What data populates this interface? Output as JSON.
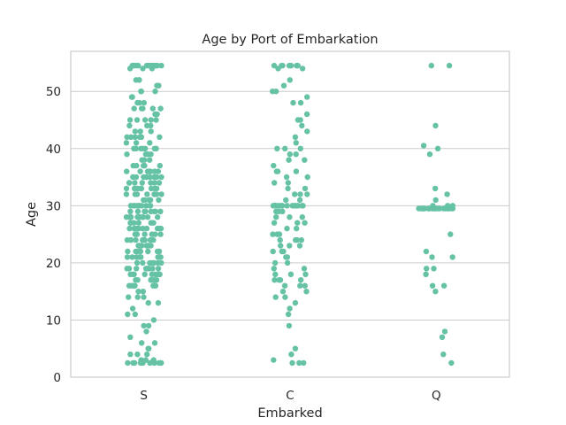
{
  "chart_data": {
    "type": "scatter",
    "title": "Age by Port of Embarkation",
    "xlabel": "Embarked",
    "ylabel": "Age",
    "categories": [
      "S",
      "C",
      "Q"
    ],
    "ylim": [
      0,
      57
    ],
    "yticks": [
      0,
      10,
      20,
      30,
      40,
      50
    ],
    "grid": true,
    "point_color": "#66c2a5",
    "series": [
      {
        "category": "S",
        "values": [
          54.5,
          54.5,
          54.5,
          54.5,
          54.5,
          54.5,
          54.5,
          54.5,
          54.5,
          54.5,
          54.5,
          54.5,
          54.5,
          54.5,
          54.5,
          54.5,
          54.5,
          54.5,
          54.5,
          54.5,
          54,
          54,
          54,
          52,
          52,
          52,
          51,
          51,
          50,
          50,
          50,
          49,
          49,
          48,
          48,
          48,
          47,
          47,
          47,
          47,
          47,
          46,
          46,
          45,
          45,
          45,
          45,
          45,
          44,
          44,
          44,
          43,
          43,
          43,
          42,
          42,
          42,
          42,
          42,
          42,
          42,
          42,
          41,
          41,
          41,
          40,
          40,
          40,
          40,
          40,
          40,
          40,
          39,
          39,
          39,
          39,
          38,
          38,
          38,
          37,
          37,
          37,
          37,
          37,
          36,
          36,
          36,
          36,
          36,
          36,
          36,
          36,
          35,
          35,
          35,
          35,
          35,
          35,
          35,
          35,
          35,
          34,
          34,
          34,
          34,
          34,
          34,
          34,
          33,
          33,
          33,
          33,
          33,
          33,
          33,
          33,
          33,
          32,
          32,
          32,
          32,
          32,
          32,
          32,
          32,
          31,
          31,
          31,
          31,
          31,
          31,
          31,
          31,
          30,
          30,
          30,
          30,
          30,
          30,
          30,
          30,
          30,
          30,
          29,
          29,
          29,
          29,
          29,
          29,
          29,
          29,
          28,
          28,
          28,
          28,
          28,
          28,
          28,
          28,
          28,
          28,
          27,
          27,
          27,
          27,
          27,
          27,
          27,
          27,
          26,
          26,
          26,
          26,
          26,
          26,
          26,
          26,
          26,
          26,
          25,
          25,
          25,
          25,
          25,
          25,
          25,
          25,
          24,
          24,
          24,
          24,
          24,
          24,
          24,
          24,
          24,
          24,
          23,
          23,
          23,
          23,
          23,
          23,
          23,
          23,
          22,
          22,
          22,
          22,
          22,
          22,
          22,
          22,
          22,
          22,
          21,
          21,
          21,
          21,
          21,
          21,
          21,
          21,
          21,
          20,
          20,
          20,
          20,
          20,
          20,
          20,
          20,
          19,
          19,
          19,
          19,
          19,
          19,
          19,
          19,
          19,
          18,
          18,
          18,
          18,
          18,
          18,
          18,
          18,
          18,
          17,
          17,
          17,
          17,
          17,
          17,
          17,
          16,
          16,
          16,
          16,
          16,
          16,
          16,
          16,
          15,
          15,
          14,
          14,
          14,
          13,
          13,
          12,
          11,
          11,
          10,
          9,
          9,
          8,
          7,
          6,
          6,
          5,
          5,
          4,
          4,
          4,
          3,
          3,
          3,
          2.5,
          2.5,
          2.5,
          2.5,
          2.5,
          2.5,
          2.5,
          2.5,
          2.5,
          2.5,
          2.5,
          2.5
        ]
      },
      {
        "category": "C",
        "values": [
          54.5,
          54.5,
          54.5,
          54.5,
          54.5,
          54.5,
          54.5,
          54.5,
          54.5,
          54,
          54,
          52,
          51,
          50,
          50,
          49,
          48,
          48,
          46,
          45,
          45,
          44,
          43,
          42,
          41,
          40,
          40,
          40,
          39,
          39,
          38,
          38,
          37,
          36,
          36,
          36,
          35,
          35,
          34,
          34,
          33,
          33,
          32,
          32,
          32,
          31,
          31,
          30,
          30,
          30,
          30,
          30,
          30,
          30,
          30,
          30,
          30,
          30,
          30,
          30,
          30,
          30,
          30,
          30,
          30,
          29,
          29,
          29,
          28,
          28,
          28,
          27,
          27,
          27,
          26,
          26,
          25,
          25,
          25,
          24,
          24,
          24,
          24,
          23,
          23,
          23,
          22,
          22,
          22,
          21,
          21,
          20,
          20,
          19,
          19,
          18,
          18,
          18,
          17,
          17,
          17,
          17,
          16,
          16,
          16,
          15,
          15,
          14,
          14,
          13,
          12,
          11,
          9,
          5,
          4,
          3,
          2.5,
          2.5,
          2.5
        ]
      },
      {
        "category": "Q",
        "values": [
          54.5,
          54.5,
          44,
          40.5,
          40,
          39,
          33,
          32,
          31,
          30,
          30,
          30,
          29.5,
          29.5,
          29.5,
          29.5,
          29.5,
          29.5,
          29.5,
          29.5,
          29.5,
          29.5,
          29.5,
          29.5,
          29.5,
          29.5,
          29.5,
          29.5,
          29.5,
          29.5,
          29.5,
          29.5,
          29.5,
          29.5,
          29.5,
          25,
          22,
          21,
          21,
          19,
          19,
          18,
          16,
          16,
          15,
          8,
          7,
          4,
          2.5
        ]
      }
    ]
  }
}
